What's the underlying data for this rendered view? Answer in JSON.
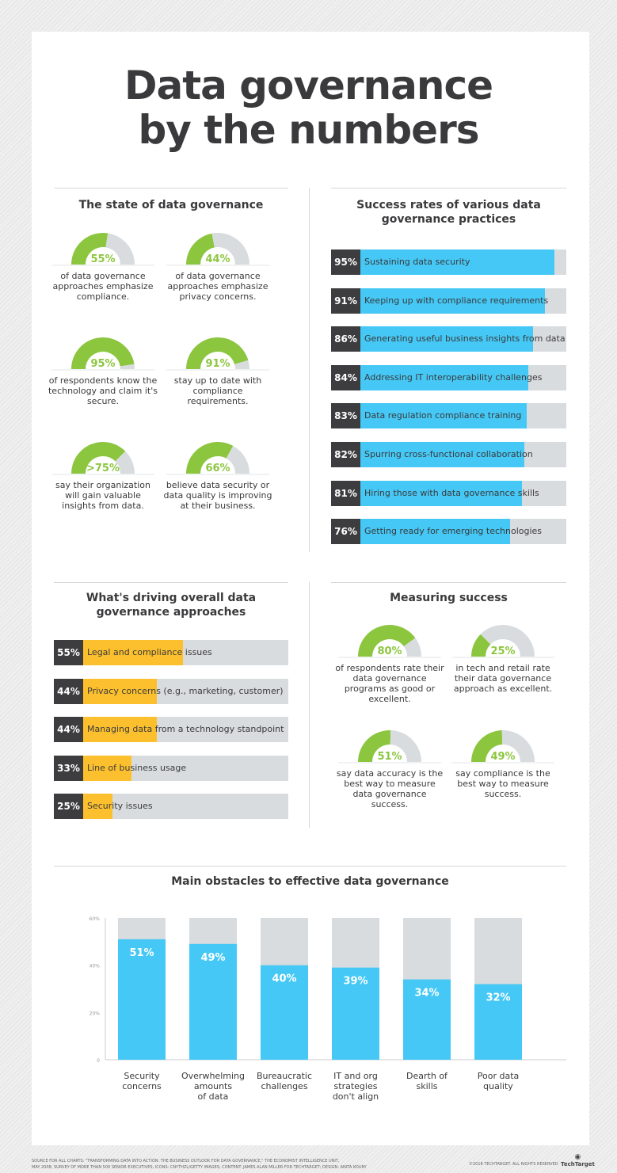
{
  "title_line1": "Data governance",
  "title_line2": "by the numbers",
  "colors": {
    "green": "#8cc63f",
    "blue": "#45c8f5",
    "yellow": "#fcc02e",
    "gray_track": "#d8dcdf",
    "dark": "#3d3d3f"
  },
  "state": {
    "title": "The state of data governance",
    "gauges": [
      {
        "label": "55%",
        "value": 55,
        "text": "of data governance approaches emphasize compliance."
      },
      {
        "label": "44%",
        "value": 44,
        "text": "of data governance approaches emphasize privacy concerns."
      },
      {
        "label": "95%",
        "value": 95,
        "text": "of respondents know the technology and claim it's secure."
      },
      {
        "label": "91%",
        "value": 91,
        "text": "stay up to date with compliance requirements."
      },
      {
        "label": ">75%",
        "value": 75,
        "text": "say their organization will gain valuable insights from data."
      },
      {
        "label": "66%",
        "value": 66,
        "text": "believe data security or data quality is improving at their business."
      }
    ]
  },
  "success": {
    "title": "Success rates of various data governance practices",
    "items": [
      {
        "label": "95%",
        "value": 95,
        "text": "Sustaining data security"
      },
      {
        "label": "91%",
        "value": 91,
        "text": "Keeping up with compliance requirements"
      },
      {
        "label": "86%",
        "value": 86,
        "text": "Generating useful business insights from data"
      },
      {
        "label": "84%",
        "value": 84,
        "text": "Addressing IT interoperability challenges"
      },
      {
        "label": "83%",
        "value": 83,
        "text": "Data regulation compliance training"
      },
      {
        "label": "82%",
        "value": 82,
        "text": "Spurring cross-functional collaboration"
      },
      {
        "label": "81%",
        "value": 81,
        "text": "Hiring those with data governance skills"
      },
      {
        "label": "76%",
        "value": 76,
        "text": "Getting ready for emerging technologies"
      }
    ]
  },
  "driving": {
    "title": "What's driving overall data governance approaches",
    "items": [
      {
        "label": "55%",
        "value": 55,
        "text": "Legal and compliance issues"
      },
      {
        "label": "44%",
        "value": 44,
        "text": "Privacy concerns (e.g., marketing, customer)"
      },
      {
        "label": "44%",
        "value": 44,
        "text": "Managing data from a technology standpoint"
      },
      {
        "label": "33%",
        "value": 33,
        "text": "Line of business usage"
      },
      {
        "label": "25%",
        "value": 25,
        "text": "Security issues"
      }
    ]
  },
  "measuring": {
    "title": "Measuring success",
    "gauges": [
      {
        "label": "80%",
        "value": 80,
        "text": "of respondents rate their data governance programs as good or excellent."
      },
      {
        "label": "25%",
        "value": 25,
        "text": "in tech and retail rate their data governance approach as excellent."
      },
      {
        "label": "51%",
        "value": 51,
        "text": "say data accuracy is the best way to measure data governance success."
      },
      {
        "label": "49%",
        "value": 49,
        "text": "say compliance is the best way to measure success."
      }
    ]
  },
  "chart_data": {
    "type": "bar",
    "title": "Main obstacles to effective data governance",
    "categories": [
      "Security concerns",
      "Overwhelming amounts of data",
      "Bureaucratic challenges",
      "IT and org strategies don't align",
      "Dearth of skills",
      "Poor data quality"
    ],
    "values": [
      51,
      49,
      40,
      39,
      34,
      32
    ],
    "data_labels": [
      "51%",
      "49%",
      "40%",
      "39%",
      "34%",
      "32%"
    ],
    "ylim": [
      0,
      60
    ],
    "yticks": [
      "0",
      "20%",
      "40%",
      "60%"
    ],
    "grid": false
  },
  "footer": {
    "source_line1": "Source for all charts: \"Transforming data into action: The business outlook for data governance,\" The Economist Intelligence Unit,",
    "source_line2": "May 2008; survey of more than 500 senior executives; Icons: cnythzl/Getty Images; Content: James Alan Miller for TechTarget; Design: Anita Koury",
    "copyright": "©2018 TechTarget. All rights reserved",
    "logo": "TechTarget"
  }
}
